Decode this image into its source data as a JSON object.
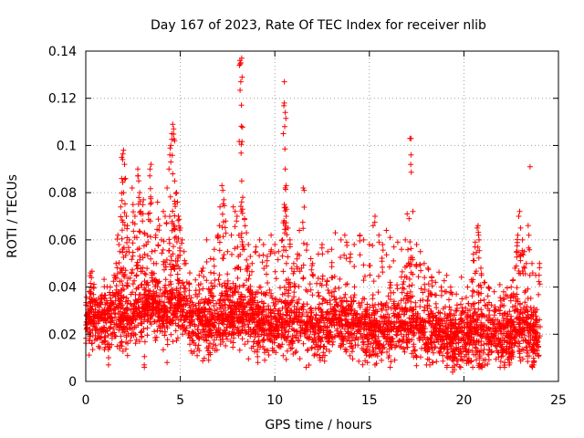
{
  "chart_data": {
    "type": "scatter",
    "title": "Day 167 of 2023, Rate Of TEC Index for receiver nlib",
    "xlabel": "GPS time / hours",
    "ylabel": "ROTI / TECUs",
    "xlim": [
      0,
      25
    ],
    "ylim": [
      0,
      0.14
    ],
    "x_ticks": [
      0,
      5,
      10,
      15,
      20,
      25
    ],
    "x_tick_labels": [
      "0",
      "5",
      "10",
      "15",
      "20",
      "25"
    ],
    "y_ticks": [
      0,
      0.02,
      0.04,
      0.06,
      0.08,
      0.1,
      0.12,
      0.14
    ],
    "y_tick_labels": [
      "0",
      "0.02",
      "0.04",
      "0.06",
      "0.08",
      "0.1",
      "0.12",
      "0.14"
    ],
    "grid": true,
    "marker": "+",
    "color": "#ff0000",
    "baseline": [
      [
        0.0,
        0.022
      ],
      [
        0.5,
        0.025
      ],
      [
        1.0,
        0.024
      ],
      [
        1.5,
        0.026
      ],
      [
        2.0,
        0.025
      ],
      [
        2.5,
        0.026
      ],
      [
        3.0,
        0.03
      ],
      [
        3.5,
        0.032
      ],
      [
        4.0,
        0.027
      ],
      [
        4.5,
        0.03
      ],
      [
        5.0,
        0.032
      ],
      [
        5.5,
        0.024
      ],
      [
        6.0,
        0.023
      ],
      [
        6.5,
        0.024
      ],
      [
        7.0,
        0.025
      ],
      [
        7.5,
        0.026
      ],
      [
        8.0,
        0.027
      ],
      [
        8.5,
        0.026
      ],
      [
        9.0,
        0.025
      ],
      [
        9.5,
        0.024
      ],
      [
        10.0,
        0.022
      ],
      [
        10.5,
        0.025
      ],
      [
        11.0,
        0.024
      ],
      [
        11.5,
        0.022
      ],
      [
        12.0,
        0.021
      ],
      [
        12.5,
        0.022
      ],
      [
        13.0,
        0.024
      ],
      [
        13.5,
        0.023
      ],
      [
        14.0,
        0.022
      ],
      [
        14.5,
        0.023
      ],
      [
        15.0,
        0.021
      ],
      [
        15.5,
        0.02
      ],
      [
        16.0,
        0.022
      ],
      [
        16.5,
        0.021
      ],
      [
        17.0,
        0.022
      ],
      [
        17.5,
        0.021
      ],
      [
        18.0,
        0.02
      ],
      [
        18.5,
        0.019
      ],
      [
        19.0,
        0.018
      ],
      [
        19.5,
        0.018
      ],
      [
        20.0,
        0.017
      ],
      [
        20.5,
        0.019
      ],
      [
        21.0,
        0.018
      ],
      [
        21.5,
        0.019
      ],
      [
        22.0,
        0.018
      ],
      [
        22.5,
        0.019
      ],
      [
        23.0,
        0.02
      ],
      [
        23.5,
        0.019
      ],
      [
        24.0,
        0.018
      ]
    ],
    "points": [
      [
        0.1,
        0.032
      ],
      [
        0.2,
        0.038
      ],
      [
        0.3,
        0.044
      ],
      [
        0.25,
        0.046
      ],
      [
        0.4,
        0.04
      ],
      [
        0.5,
        0.034
      ],
      [
        0.8,
        0.036
      ],
      [
        1.0,
        0.035
      ],
      [
        1.3,
        0.04
      ],
      [
        1.5,
        0.045
      ],
      [
        1.6,
        0.05
      ],
      [
        1.7,
        0.062
      ],
      [
        1.75,
        0.058
      ],
      [
        1.8,
        0.055
      ],
      [
        1.85,
        0.074
      ],
      [
        1.9,
        0.095
      ],
      [
        1.95,
        0.094
      ],
      [
        2.0,
        0.098
      ],
      [
        2.05,
        0.092
      ],
      [
        2.1,
        0.086
      ],
      [
        1.9,
        0.086
      ],
      [
        2.0,
        0.08
      ],
      [
        2.15,
        0.07
      ],
      [
        2.2,
        0.066
      ],
      [
        2.3,
        0.06
      ],
      [
        2.45,
        0.082
      ],
      [
        2.5,
        0.075
      ],
      [
        2.6,
        0.07
      ],
      [
        2.7,
        0.061
      ],
      [
        2.75,
        0.09
      ],
      [
        2.8,
        0.085
      ],
      [
        2.85,
        0.08
      ],
      [
        2.9,
        0.072
      ],
      [
        3.0,
        0.068
      ],
      [
        3.05,
        0.077
      ],
      [
        3.1,
        0.063
      ],
      [
        3.2,
        0.058
      ],
      [
        3.3,
        0.071
      ],
      [
        3.4,
        0.09
      ],
      [
        3.45,
        0.092
      ],
      [
        3.5,
        0.055
      ],
      [
        3.6,
        0.05
      ],
      [
        3.7,
        0.062
      ],
      [
        3.8,
        0.076
      ],
      [
        3.9,
        0.066
      ],
      [
        4.0,
        0.06
      ],
      [
        4.1,
        0.072
      ],
      [
        4.2,
        0.07
      ],
      [
        4.3,
        0.082
      ],
      [
        4.4,
        0.09
      ],
      [
        4.45,
        0.096
      ],
      [
        4.5,
        0.1
      ],
      [
        4.55,
        0.105
      ],
      [
        4.6,
        0.109
      ],
      [
        4.65,
        0.107
      ],
      [
        4.7,
        0.102
      ],
      [
        4.5,
        0.093
      ],
      [
        4.6,
        0.088
      ],
      [
        4.7,
        0.085
      ],
      [
        4.8,
        0.08
      ],
      [
        4.85,
        0.076
      ],
      [
        4.9,
        0.07
      ],
      [
        5.0,
        0.065
      ],
      [
        5.1,
        0.06
      ],
      [
        5.2,
        0.055
      ],
      [
        5.3,
        0.05
      ],
      [
        5.5,
        0.046
      ],
      [
        5.8,
        0.043
      ],
      [
        6.0,
        0.045
      ],
      [
        6.2,
        0.048
      ],
      [
        6.4,
        0.06
      ],
      [
        6.6,
        0.052
      ],
      [
        6.8,
        0.056
      ],
      [
        7.0,
        0.062
      ],
      [
        7.1,
        0.074
      ],
      [
        7.2,
        0.083
      ],
      [
        7.25,
        0.081
      ],
      [
        7.3,
        0.077
      ],
      [
        7.4,
        0.068
      ],
      [
        7.5,
        0.055
      ],
      [
        7.7,
        0.062
      ],
      [
        7.8,
        0.074
      ],
      [
        7.9,
        0.072
      ],
      [
        8.0,
        0.07
      ],
      [
        8.1,
        0.062
      ],
      [
        8.15,
        0.136
      ],
      [
        8.2,
        0.135
      ],
      [
        8.25,
        0.137
      ],
      [
        8.2,
        0.127
      ],
      [
        8.25,
        0.085
      ],
      [
        8.3,
        0.078
      ],
      [
        8.4,
        0.069
      ],
      [
        8.5,
        0.063
      ],
      [
        8.6,
        0.058
      ],
      [
        8.7,
        0.053
      ],
      [
        8.8,
        0.05
      ],
      [
        9.0,
        0.057
      ],
      [
        9.2,
        0.06
      ],
      [
        9.4,
        0.058
      ],
      [
        9.6,
        0.053
      ],
      [
        9.8,
        0.062
      ],
      [
        10.0,
        0.058
      ],
      [
        10.2,
        0.055
      ],
      [
        10.4,
        0.06
      ],
      [
        10.45,
        0.105
      ],
      [
        10.5,
        0.118
      ],
      [
        10.55,
        0.114
      ],
      [
        10.5,
        0.127
      ],
      [
        10.55,
        0.09
      ],
      [
        10.6,
        0.083
      ],
      [
        10.5,
        0.075
      ],
      [
        10.6,
        0.07
      ],
      [
        10.7,
        0.065
      ],
      [
        10.8,
        0.06
      ],
      [
        11.0,
        0.05
      ],
      [
        11.2,
        0.054
      ],
      [
        11.3,
        0.064
      ],
      [
        11.5,
        0.082
      ],
      [
        11.55,
        0.081
      ],
      [
        11.7,
        0.058
      ],
      [
        11.9,
        0.052
      ],
      [
        12.0,
        0.05
      ],
      [
        12.3,
        0.054
      ],
      [
        12.5,
        0.058
      ],
      [
        12.8,
        0.055
      ],
      [
        13.0,
        0.056
      ],
      [
        13.2,
        0.063
      ],
      [
        13.5,
        0.06
      ],
      [
        13.7,
        0.062
      ],
      [
        13.8,
        0.059
      ],
      [
        14.0,
        0.054
      ],
      [
        14.2,
        0.058
      ],
      [
        14.5,
        0.062
      ],
      [
        14.7,
        0.06
      ],
      [
        15.0,
        0.058
      ],
      [
        15.2,
        0.066
      ],
      [
        15.3,
        0.07
      ],
      [
        15.5,
        0.062
      ],
      [
        15.7,
        0.058
      ],
      [
        15.9,
        0.064
      ],
      [
        16.1,
        0.061
      ],
      [
        16.3,
        0.057
      ],
      [
        16.5,
        0.059
      ],
      [
        16.7,
        0.056
      ],
      [
        16.9,
        0.06
      ],
      [
        17.0,
        0.071
      ],
      [
        17.1,
        0.069
      ],
      [
        17.15,
        0.103
      ],
      [
        17.2,
        0.103
      ],
      [
        17.2,
        0.096
      ],
      [
        17.3,
        0.072
      ],
      [
        17.5,
        0.058
      ],
      [
        17.7,
        0.055
      ],
      [
        17.9,
        0.05
      ],
      [
        18.1,
        0.048
      ],
      [
        18.3,
        0.044
      ],
      [
        18.5,
        0.042
      ],
      [
        18.8,
        0.04
      ],
      [
        19.0,
        0.038
      ],
      [
        19.3,
        0.04
      ],
      [
        19.6,
        0.037
      ],
      [
        19.9,
        0.035
      ],
      [
        20.2,
        0.04
      ],
      [
        20.4,
        0.043
      ],
      [
        20.5,
        0.054
      ],
      [
        20.6,
        0.059
      ],
      [
        20.7,
        0.065
      ],
      [
        20.75,
        0.066
      ],
      [
        20.8,
        0.06
      ],
      [
        20.9,
        0.048
      ],
      [
        21.1,
        0.042
      ],
      [
        21.3,
        0.04
      ],
      [
        21.6,
        0.038
      ],
      [
        21.9,
        0.041
      ],
      [
        22.1,
        0.038
      ],
      [
        22.3,
        0.036
      ],
      [
        22.5,
        0.04
      ],
      [
        22.6,
        0.043
      ],
      [
        22.7,
        0.048
      ],
      [
        22.8,
        0.055
      ],
      [
        22.85,
        0.062
      ],
      [
        22.9,
        0.07
      ],
      [
        22.95,
        0.072
      ],
      [
        23.0,
        0.065
      ],
      [
        23.1,
        0.06
      ],
      [
        23.2,
        0.055
      ],
      [
        23.3,
        0.05
      ],
      [
        23.4,
        0.066
      ],
      [
        23.5,
        0.091
      ],
      [
        23.6,
        0.05
      ],
      [
        23.8,
        0.045
      ],
      [
        24.0,
        0.05
      ],
      [
        1.2,
        0.007
      ],
      [
        3.1,
        0.006
      ],
      [
        4.3,
        0.008
      ],
      [
        6.5,
        0.009
      ],
      [
        9.1,
        0.008
      ],
      [
        12.4,
        0.009
      ],
      [
        14.9,
        0.008
      ],
      [
        15.3,
        0.007
      ],
      [
        16.1,
        0.006
      ],
      [
        18.2,
        0.007
      ],
      [
        19.1,
        0.006
      ],
      [
        19.4,
        0.004
      ],
      [
        19.5,
        0.005
      ],
      [
        20.8,
        0.006
      ],
      [
        22.4,
        0.007
      ],
      [
        23.7,
        0.008
      ]
    ]
  }
}
